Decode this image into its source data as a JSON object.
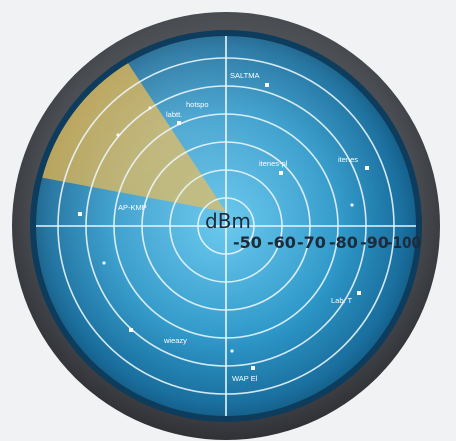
{
  "radar": {
    "unit_label": "dBm",
    "scale_labels": [
      "-50",
      "-60",
      "-70",
      "-80",
      "-90",
      "-100"
    ],
    "colors": {
      "bezel": "#4a4d52",
      "screen": "#2d97c8",
      "grid": "#e8f4fb",
      "sweep": "#d6a63a",
      "text_dark": "#1d2b3a",
      "page_bg": "#f1f2f3"
    }
  },
  "networks": [
    {
      "name": "SALTMA",
      "has_marker": true
    },
    {
      "name": "hotspo",
      "has_marker": false
    },
    {
      "name": "labtt.",
      "has_marker": true
    },
    {
      "name": "itenes-pl",
      "has_marker": true
    },
    {
      "name": "itenes",
      "has_marker": true
    },
    {
      "name": "AP-KMP",
      "has_marker": true
    },
    {
      "name": "Lab. T",
      "has_marker": true
    },
    {
      "name": "wieazy",
      "has_marker": true
    },
    {
      "name": "WAP El",
      "has_marker": true
    }
  ],
  "unlabeled_blips": [
    {
      "name": "blip-1"
    },
    {
      "name": "blip-2"
    },
    {
      "name": "blip-3"
    },
    {
      "name": "blip-4"
    },
    {
      "name": "blip-5"
    }
  ]
}
